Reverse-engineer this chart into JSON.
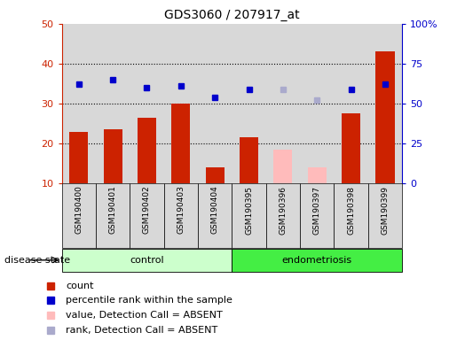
{
  "title": "GDS3060 / 207917_at",
  "samples": [
    "GSM190400",
    "GSM190401",
    "GSM190402",
    "GSM190403",
    "GSM190404",
    "GSM190395",
    "GSM190396",
    "GSM190397",
    "GSM190398",
    "GSM190399"
  ],
  "bar_values": [
    23,
    23.5,
    26.5,
    30,
    14,
    21.5,
    18.5,
    14,
    27.5,
    43
  ],
  "bar_colors": [
    "#cc2200",
    "#cc2200",
    "#cc2200",
    "#cc2200",
    "#cc2200",
    "#cc2200",
    "#ffbbbb",
    "#ffbbbb",
    "#cc2200",
    "#cc2200"
  ],
  "rank_values": [
    35,
    36,
    34,
    34.5,
    31.5,
    33.5,
    33.5,
    31,
    33.5,
    35
  ],
  "rank_colors": [
    "#0000cc",
    "#0000cc",
    "#0000cc",
    "#0000cc",
    "#0000cc",
    "#0000cc",
    "#aaaacc",
    "#aaaacc",
    "#0000cc",
    "#0000cc"
  ],
  "groups": [
    {
      "label": "control",
      "start": 0,
      "end": 5,
      "color": "#ccffcc"
    },
    {
      "label": "endometriosis",
      "start": 5,
      "end": 10,
      "color": "#44ee44"
    }
  ],
  "ylim_left": [
    10,
    50
  ],
  "ylim_right": [
    0,
    100
  ],
  "yticks_left": [
    10,
    20,
    30,
    40,
    50
  ],
  "yticks_right": [
    0,
    25,
    50,
    75,
    100
  ],
  "yticklabels_right": [
    "0",
    "25",
    "50",
    "75",
    "100%"
  ],
  "grid_values": [
    20,
    30,
    40
  ],
  "left_axis_color": "#cc2200",
  "right_axis_color": "#0000cc",
  "legend_items": [
    {
      "label": "count",
      "color": "#cc2200"
    },
    {
      "label": "percentile rank within the sample",
      "color": "#0000cc"
    },
    {
      "label": "value, Detection Call = ABSENT",
      "color": "#ffbbbb"
    },
    {
      "label": "rank, Detection Call = ABSENT",
      "color": "#aaaacc"
    }
  ],
  "disease_state_label": "disease state",
  "col_bg_color": "#d8d8d8",
  "plot_bg_color": "#ffffff"
}
